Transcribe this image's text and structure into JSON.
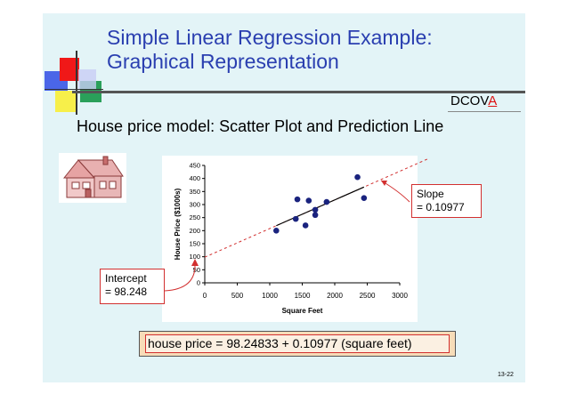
{
  "slide": {
    "title_line1": "Simple Linear Regression Example:",
    "title_line2": "Graphical Representation",
    "tag_prefix": "DCOV",
    "tag_highlight": "A",
    "subtitle": "House price model:  Scatter Plot and Prediction Line",
    "equation": "house price = 98.24833 + 0.10977 (square feet)",
    "page_number": "13-22",
    "colors": {
      "title": "#2a3fb0",
      "background": "#e3f4f7",
      "accent": "#d23030"
    }
  },
  "callouts": {
    "slope_line1": "Slope",
    "slope_line2": "= 0.10977",
    "intercept_line1": "Intercept",
    "intercept_line2": "= 98.248"
  },
  "chart_data": {
    "type": "scatter",
    "xlabel": "Square Feet",
    "ylabel": "House Price ($1000s)",
    "xlim": [
      0,
      3000
    ],
    "ylim": [
      0,
      450
    ],
    "x_ticks": [
      0,
      500,
      1000,
      1500,
      2000,
      2500,
      3000
    ],
    "y_ticks": [
      0,
      50,
      100,
      150,
      200,
      250,
      300,
      350,
      400,
      450
    ],
    "points": [
      [
        1100,
        200
      ],
      [
        1400,
        245
      ],
      [
        1425,
        320
      ],
      [
        1550,
        220
      ],
      [
        1600,
        315
      ],
      [
        1700,
        260
      ],
      [
        1700,
        280
      ],
      [
        1875,
        310
      ],
      [
        2350,
        405
      ],
      [
        2450,
        325
      ]
    ],
    "prediction_line": {
      "intercept": 98.248,
      "slope": 0.10977
    },
    "grid": false
  }
}
